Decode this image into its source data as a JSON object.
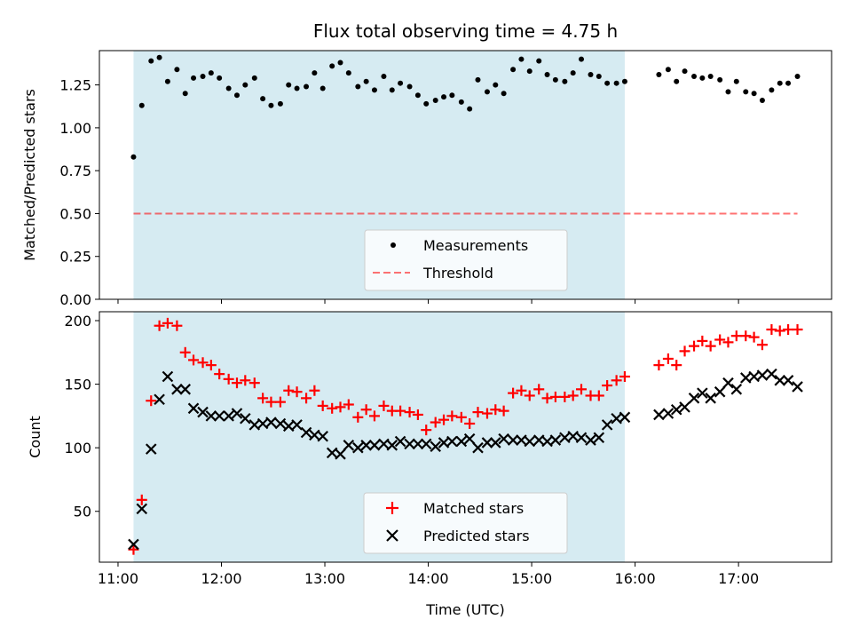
{
  "chart_data": [
    {
      "type": "scatter",
      "title": "Flux total observing time = 4.75 h",
      "xlabel": "",
      "ylabel": "Matched/Predicted stars",
      "xlim": [
        10.82,
        17.9
      ],
      "ylim": [
        0.0,
        1.45
      ],
      "yticks": [
        0.0,
        0.25,
        0.5,
        0.75,
        1.0,
        1.25
      ],
      "ytick_labels": [
        "0.00",
        "0.25",
        "0.50",
        "0.75",
        "1.00",
        "1.25"
      ],
      "shaded_span": {
        "x": [
          11.15,
          15.9
        ],
        "color": "#add8e6"
      },
      "threshold": {
        "name": "Threshold",
        "y": 0.5,
        "x": [
          11.15,
          17.57
        ],
        "color": "#ff0000",
        "style": "dashed"
      },
      "legend": {
        "position": "bottom-center",
        "entries": [
          "Measurements",
          "Threshold"
        ]
      },
      "series": [
        {
          "name": "Measurements",
          "color": "#000000",
          "marker": "dot",
          "x": [
            11.15,
            11.23,
            11.32,
            11.4,
            11.48,
            11.57,
            11.65,
            11.73,
            11.82,
            11.9,
            11.98,
            12.07,
            12.15,
            12.23,
            12.32,
            12.4,
            12.48,
            12.57,
            12.65,
            12.73,
            12.82,
            12.9,
            12.98,
            13.07,
            13.15,
            13.23,
            13.32,
            13.4,
            13.48,
            13.57,
            13.65,
            13.73,
            13.82,
            13.9,
            13.98,
            14.07,
            14.15,
            14.23,
            14.32,
            14.4,
            14.48,
            14.57,
            14.65,
            14.73,
            14.82,
            14.9,
            14.98,
            15.07,
            15.15,
            15.23,
            15.32,
            15.4,
            15.48,
            15.57,
            15.65,
            15.73,
            15.82,
            15.9,
            16.23,
            16.32,
            16.4,
            16.48,
            16.57,
            16.65,
            16.73,
            16.82,
            16.9,
            16.98,
            17.07,
            17.15,
            17.23,
            17.32,
            17.4,
            17.48,
            17.57
          ],
          "y": [
            0.83,
            1.13,
            1.39,
            1.41,
            1.27,
            1.34,
            1.2,
            1.29,
            1.3,
            1.32,
            1.29,
            1.23,
            1.19,
            1.25,
            1.29,
            1.17,
            1.13,
            1.14,
            1.25,
            1.23,
            1.24,
            1.32,
            1.23,
            1.36,
            1.38,
            1.32,
            1.24,
            1.27,
            1.22,
            1.3,
            1.22,
            1.26,
            1.24,
            1.19,
            1.14,
            1.16,
            1.18,
            1.19,
            1.15,
            1.11,
            1.28,
            1.21,
            1.25,
            1.2,
            1.34,
            1.4,
            1.33,
            1.39,
            1.31,
            1.28,
            1.27,
            1.32,
            1.4,
            1.31,
            1.3,
            1.26,
            1.26,
            1.27,
            1.31,
            1.34,
            1.27,
            1.33,
            1.3,
            1.29,
            1.3,
            1.28,
            1.21,
            1.27,
            1.21,
            1.2,
            1.16,
            1.22,
            1.26,
            1.26,
            1.3
          ]
        }
      ]
    },
    {
      "type": "scatter",
      "title": "",
      "xlabel": "Time (UTC)",
      "ylabel": "Count",
      "xlim": [
        10.82,
        17.9
      ],
      "ylim": [
        10,
        207
      ],
      "xticks": [
        11,
        12,
        13,
        14,
        15,
        16,
        17
      ],
      "xtick_labels": [
        "11:00",
        "12:00",
        "13:00",
        "14:00",
        "15:00",
        "16:00",
        "17:00"
      ],
      "yticks": [
        50,
        100,
        150,
        200
      ],
      "ytick_labels": [
        "50",
        "100",
        "150",
        "200"
      ],
      "shaded_span": {
        "x": [
          11.15,
          15.9
        ],
        "color": "#add8e6"
      },
      "legend": {
        "position": "bottom-center",
        "entries": [
          "Matched stars",
          "Predicted stars"
        ]
      },
      "series": [
        {
          "name": "Matched stars",
          "color": "#ff0000",
          "marker": "plus",
          "x": [
            11.15,
            11.23,
            11.32,
            11.4,
            11.48,
            11.57,
            11.65,
            11.73,
            11.82,
            11.9,
            11.98,
            12.07,
            12.15,
            12.23,
            12.32,
            12.4,
            12.48,
            12.57,
            12.65,
            12.73,
            12.82,
            12.9,
            12.98,
            13.07,
            13.15,
            13.23,
            13.32,
            13.4,
            13.48,
            13.57,
            13.65,
            13.73,
            13.82,
            13.9,
            13.98,
            14.07,
            14.15,
            14.23,
            14.32,
            14.4,
            14.48,
            14.57,
            14.65,
            14.73,
            14.82,
            14.9,
            14.98,
            15.07,
            15.15,
            15.23,
            15.32,
            15.4,
            15.48,
            15.57,
            15.65,
            15.73,
            15.82,
            15.9,
            16.23,
            16.32,
            16.4,
            16.48,
            16.57,
            16.65,
            16.73,
            16.82,
            16.9,
            16.98,
            17.07,
            17.15,
            17.23,
            17.32,
            17.4,
            17.48,
            17.57
          ],
          "y": [
            20,
            59,
            137,
            196,
            198,
            196,
            175,
            169,
            167,
            165,
            158,
            154,
            151,
            153,
            151,
            139,
            136,
            136,
            145,
            144,
            139,
            145,
            133,
            131,
            132,
            134,
            124,
            130,
            125,
            133,
            129,
            129,
            128,
            126,
            114,
            120,
            122,
            125,
            124,
            119,
            128,
            127,
            130,
            129,
            143,
            145,
            141,
            146,
            139,
            140,
            140,
            141,
            146,
            141,
            141,
            149,
            153,
            156,
            165,
            170,
            165,
            176,
            180,
            184,
            180,
            185,
            183,
            188,
            188,
            187,
            181,
            193,
            192,
            193,
            193
          ]
        },
        {
          "name": "Predicted stars",
          "color": "#000000",
          "marker": "x",
          "x": [
            11.15,
            11.23,
            11.32,
            11.4,
            11.48,
            11.57,
            11.65,
            11.73,
            11.82,
            11.9,
            11.98,
            12.07,
            12.15,
            12.23,
            12.32,
            12.4,
            12.48,
            12.57,
            12.65,
            12.73,
            12.82,
            12.9,
            12.98,
            13.07,
            13.15,
            13.23,
            13.32,
            13.4,
            13.48,
            13.57,
            13.65,
            13.73,
            13.82,
            13.9,
            13.98,
            14.07,
            14.15,
            14.23,
            14.32,
            14.4,
            14.48,
            14.57,
            14.65,
            14.73,
            14.82,
            14.9,
            14.98,
            15.07,
            15.15,
            15.23,
            15.32,
            15.4,
            15.48,
            15.57,
            15.65,
            15.73,
            15.82,
            15.9,
            16.23,
            16.32,
            16.4,
            16.48,
            16.57,
            16.65,
            16.73,
            16.82,
            16.9,
            16.98,
            17.07,
            17.15,
            17.23,
            17.32,
            17.4,
            17.48,
            17.57
          ],
          "y": [
            24,
            52,
            99,
            138,
            156,
            146,
            146,
            131,
            128,
            125,
            125,
            125,
            127,
            123,
            118,
            119,
            120,
            119,
            117,
            118,
            112,
            110,
            109,
            96,
            95,
            102,
            100,
            102,
            102,
            103,
            102,
            105,
            103,
            103,
            103,
            101,
            104,
            105,
            105,
            107,
            100,
            104,
            104,
            107,
            106,
            106,
            105,
            106,
            105,
            106,
            108,
            109,
            108,
            106,
            108,
            118,
            123,
            124,
            126,
            127,
            130,
            132,
            139,
            143,
            139,
            144,
            151,
            146,
            155,
            156,
            157,
            158,
            153,
            153,
            148
          ]
        }
      ]
    }
  ]
}
